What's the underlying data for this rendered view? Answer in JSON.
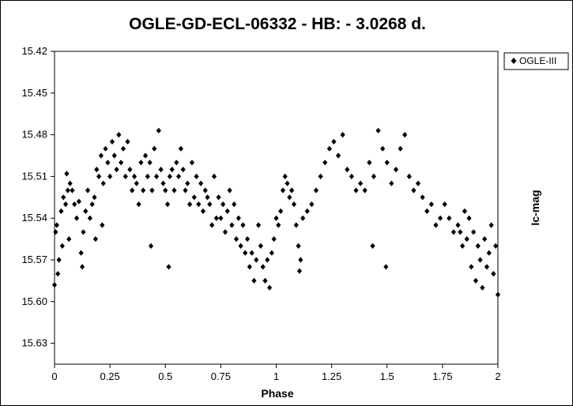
{
  "chart_data": {
    "type": "scatter",
    "title": "OGLE-GD-ECL-06332 - HB: - 3.0268 d.",
    "xlabel": "Phase",
    "ylabel": "Ic-mag",
    "xlim": [
      0,
      2
    ],
    "ylim": [
      15.42,
      15.645
    ],
    "y_reversed": true,
    "grid": false,
    "legend_position": "top-right",
    "x_ticks": [
      "0",
      "0.25",
      "0.5",
      "0.75",
      "1",
      "1.25",
      "1.5",
      "1.75",
      "2"
    ],
    "y_ticks": [
      "15.42",
      "15.45",
      "15.48",
      "15.51",
      "15.54",
      "15.57",
      "15.60",
      "15.63"
    ],
    "marker": "diamond",
    "colors": {
      "marker": "#000000"
    },
    "series": [
      {
        "name": "OGLE-III",
        "points": [
          [
            0.0,
            15.588
          ],
          [
            0.005,
            15.55
          ],
          [
            0.01,
            15.545
          ],
          [
            0.015,
            15.58
          ],
          [
            0.02,
            15.57
          ],
          [
            0.03,
            15.535
          ],
          [
            0.035,
            15.56
          ],
          [
            0.04,
            15.525
          ],
          [
            0.05,
            15.53
          ],
          [
            0.055,
            15.508
          ],
          [
            0.06,
            15.52
          ],
          [
            0.07,
            15.515
          ],
          [
            0.08,
            15.52
          ],
          [
            0.09,
            15.53
          ],
          [
            0.1,
            15.54
          ],
          [
            0.11,
            15.528
          ],
          [
            0.12,
            15.565
          ],
          [
            0.125,
            15.575
          ],
          [
            0.13,
            15.55
          ],
          [
            0.14,
            15.535
          ],
          [
            0.15,
            15.52
          ],
          [
            0.16,
            15.54
          ],
          [
            0.17,
            15.53
          ],
          [
            0.18,
            15.525
          ],
          [
            0.19,
            15.505
          ],
          [
            0.2,
            15.51
          ],
          [
            0.21,
            15.495
          ],
          [
            0.22,
            15.515
          ],
          [
            0.23,
            15.49
          ],
          [
            0.24,
            15.5
          ],
          [
            0.25,
            15.51
          ],
          [
            0.26,
            15.485
          ],
          [
            0.27,
            15.495
          ],
          [
            0.28,
            15.505
          ],
          [
            0.29,
            15.48
          ],
          [
            0.3,
            15.5
          ],
          [
            0.31,
            15.49
          ],
          [
            0.32,
            15.51
          ],
          [
            0.33,
            15.485
          ],
          [
            0.34,
            15.505
          ],
          [
            0.35,
            15.52
          ],
          [
            0.36,
            15.51
          ],
          [
            0.37,
            15.515
          ],
          [
            0.38,
            15.53
          ],
          [
            0.39,
            15.5
          ],
          [
            0.4,
            15.52
          ],
          [
            0.41,
            15.495
          ],
          [
            0.42,
            15.51
          ],
          [
            0.43,
            15.5
          ],
          [
            0.44,
            15.52
          ],
          [
            0.45,
            15.49
          ],
          [
            0.46,
            15.51
          ],
          [
            0.47,
            15.477
          ],
          [
            0.48,
            15.505
          ],
          [
            0.49,
            15.515
          ],
          [
            0.5,
            15.52
          ],
          [
            0.51,
            15.53
          ],
          [
            0.52,
            15.51
          ],
          [
            0.53,
            15.505
          ],
          [
            0.54,
            15.52
          ],
          [
            0.55,
            15.5
          ],
          [
            0.56,
            15.51
          ],
          [
            0.57,
            15.49
          ],
          [
            0.58,
            15.505
          ],
          [
            0.59,
            15.52
          ],
          [
            0.6,
            15.515
          ],
          [
            0.61,
            15.53
          ],
          [
            0.62,
            15.5
          ],
          [
            0.63,
            15.525
          ],
          [
            0.64,
            15.51
          ],
          [
            0.65,
            15.53
          ],
          [
            0.66,
            15.515
          ],
          [
            0.67,
            15.535
          ],
          [
            0.68,
            15.52
          ],
          [
            0.69,
            15.525
          ],
          [
            0.7,
            15.53
          ],
          [
            0.71,
            15.545
          ],
          [
            0.72,
            15.51
          ],
          [
            0.73,
            15.54
          ],
          [
            0.74,
            15.525
          ],
          [
            0.75,
            15.54
          ],
          [
            0.76,
            15.53
          ],
          [
            0.77,
            15.55
          ],
          [
            0.78,
            15.535
          ],
          [
            0.79,
            15.52
          ],
          [
            0.8,
            15.545
          ],
          [
            0.81,
            15.53
          ],
          [
            0.82,
            15.555
          ],
          [
            0.83,
            15.54
          ],
          [
            0.84,
            15.56
          ],
          [
            0.85,
            15.545
          ],
          [
            0.86,
            15.565
          ],
          [
            0.87,
            15.555
          ],
          [
            0.88,
            15.575
          ],
          [
            0.89,
            15.565
          ],
          [
            0.9,
            15.585
          ],
          [
            0.91,
            15.57
          ],
          [
            0.92,
            15.545
          ],
          [
            0.93,
            15.56
          ],
          [
            0.94,
            15.575
          ],
          [
            0.95,
            15.585
          ],
          [
            0.96,
            15.57
          ],
          [
            0.97,
            15.59
          ],
          [
            0.98,
            15.565
          ],
          [
            0.99,
            15.555
          ],
          [
            1.0,
            15.54
          ],
          [
            1.01,
            15.545
          ],
          [
            1.02,
            15.535
          ],
          [
            1.03,
            15.52
          ],
          [
            1.04,
            15.51
          ],
          [
            1.05,
            15.515
          ],
          [
            1.06,
            15.525
          ],
          [
            1.07,
            15.52
          ],
          [
            1.08,
            15.53
          ],
          [
            1.09,
            15.545
          ],
          [
            1.1,
            15.56
          ],
          [
            1.12,
            15.54
          ],
          [
            1.14,
            15.535
          ],
          [
            1.16,
            15.53
          ],
          [
            1.18,
            15.52
          ],
          [
            1.2,
            15.51
          ],
          [
            1.22,
            15.5
          ],
          [
            1.24,
            15.49
          ],
          [
            1.26,
            15.485
          ],
          [
            1.28,
            15.495
          ],
          [
            1.3,
            15.48
          ],
          [
            1.32,
            15.505
          ],
          [
            1.34,
            15.51
          ],
          [
            1.36,
            15.52
          ],
          [
            1.38,
            15.515
          ],
          [
            1.4,
            15.52
          ],
          [
            1.42,
            15.5
          ],
          [
            1.44,
            15.51
          ],
          [
            1.46,
            15.477
          ],
          [
            1.48,
            15.49
          ],
          [
            1.5,
            15.5
          ],
          [
            1.52,
            15.515
          ],
          [
            1.54,
            15.505
          ],
          [
            1.56,
            15.49
          ],
          [
            1.58,
            15.48
          ],
          [
            1.6,
            15.51
          ],
          [
            1.62,
            15.52
          ],
          [
            1.64,
            15.515
          ],
          [
            1.66,
            15.525
          ],
          [
            1.68,
            15.535
          ],
          [
            1.7,
            15.53
          ],
          [
            1.72,
            15.545
          ],
          [
            1.74,
            15.54
          ],
          [
            1.76,
            15.53
          ],
          [
            1.78,
            15.54
          ],
          [
            1.8,
            15.55
          ],
          [
            1.82,
            15.545
          ],
          [
            1.84,
            15.56
          ],
          [
            1.86,
            15.555
          ],
          [
            1.88,
            15.575
          ],
          [
            1.9,
            15.585
          ],
          [
            1.92,
            15.57
          ],
          [
            1.94,
            15.555
          ],
          [
            1.96,
            15.565
          ],
          [
            1.98,
            15.58
          ],
          [
            2.0,
            15.595
          ],
          [
            1.99,
            15.56
          ],
          [
            1.97,
            15.545
          ],
          [
            1.95,
            15.575
          ],
          [
            1.93,
            15.59
          ],
          [
            1.91,
            15.56
          ],
          [
            1.89,
            15.55
          ],
          [
            1.87,
            15.54
          ],
          [
            1.85,
            15.535
          ],
          [
            1.83,
            15.55
          ],
          [
            0.185,
            15.555
          ],
          [
            0.215,
            15.545
          ],
          [
            0.435,
            15.56
          ],
          [
            0.515,
            15.575
          ],
          [
            1.435,
            15.56
          ],
          [
            1.495,
            15.575
          ],
          [
            0.065,
            15.555
          ],
          [
            1.11,
            15.57
          ],
          [
            1.105,
            15.578
          ]
        ]
      }
    ]
  }
}
